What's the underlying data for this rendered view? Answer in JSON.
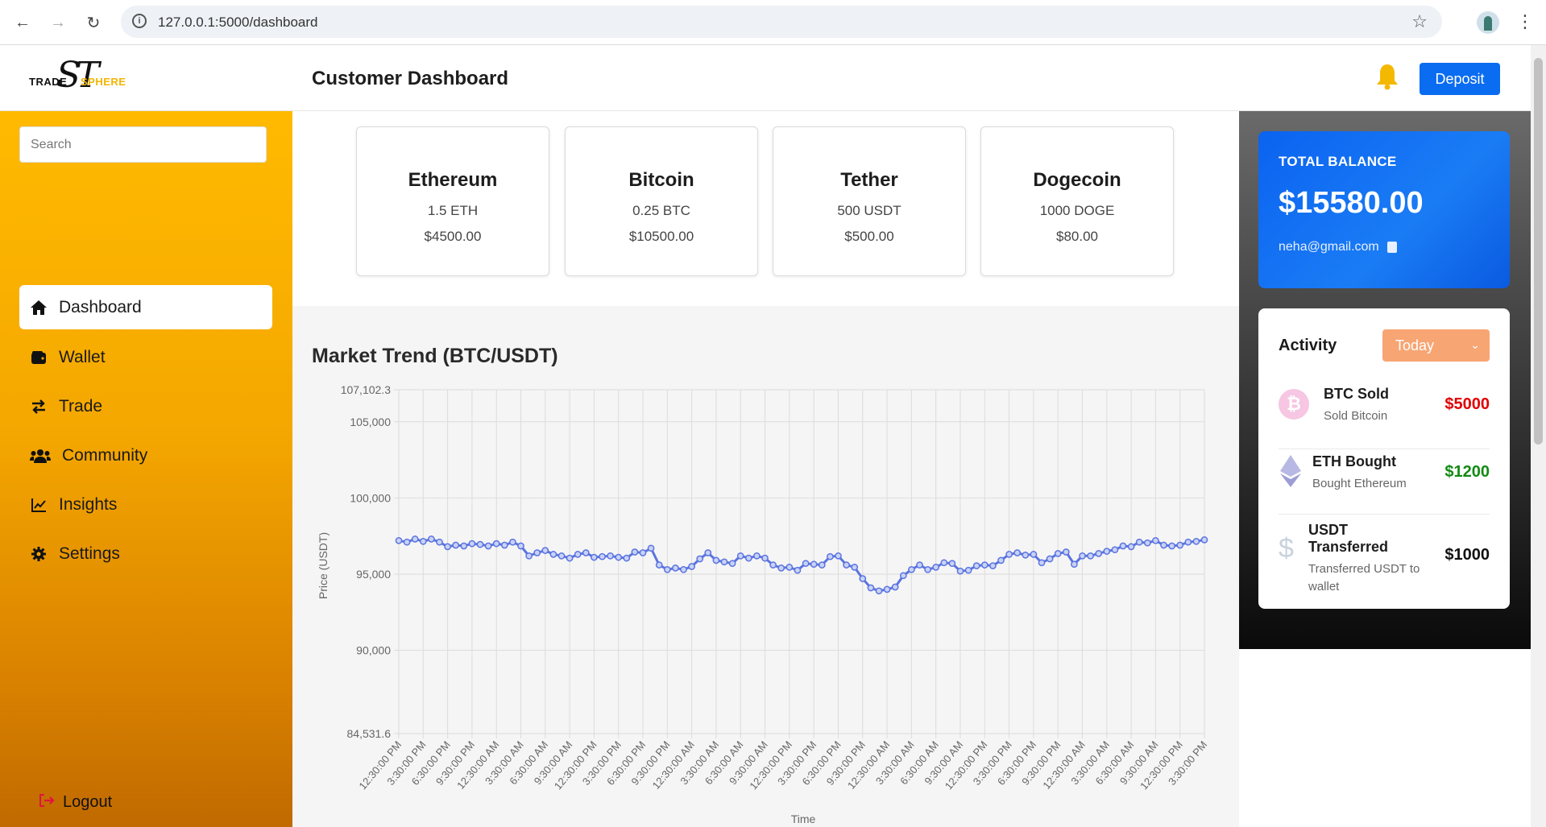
{
  "browser": {
    "url": "127.0.0.1:5000/dashboard"
  },
  "header": {
    "logo_trade": "TRADE",
    "logo_sphere": "SPHERE",
    "logo_mark": "ST",
    "title": "Customer Dashboard",
    "deposit_label": "Deposit"
  },
  "sidebar": {
    "search_placeholder": "Search",
    "items": [
      {
        "label": "Dashboard",
        "icon": "home-icon"
      },
      {
        "label": "Wallet",
        "icon": "wallet-icon"
      },
      {
        "label": "Trade",
        "icon": "exchange-icon"
      },
      {
        "label": "Community",
        "icon": "users-icon"
      },
      {
        "label": "Insights",
        "icon": "chart-line-icon"
      },
      {
        "label": "Settings",
        "icon": "gear-icon"
      }
    ],
    "logout_label": "Logout"
  },
  "coins": [
    {
      "name": "Ethereum",
      "amount": "1.5 ETH",
      "value": "$4500.00"
    },
    {
      "name": "Bitcoin",
      "amount": "0.25 BTC",
      "value": "$10500.00"
    },
    {
      "name": "Tether",
      "amount": "500 USDT",
      "value": "$500.00"
    },
    {
      "name": "Dogecoin",
      "amount": "1000 DOGE",
      "value": "$80.00"
    }
  ],
  "market": {
    "title": "Market Trend (BTC/USDT)"
  },
  "balance": {
    "label": "TOTAL BALANCE",
    "amount": "$15580.00",
    "email": "neha@gmail.com"
  },
  "activity": {
    "title": "Activity",
    "filter_value": "Today",
    "items": [
      {
        "title": "BTC Sold",
        "subtitle": "Sold Bitcoin",
        "amount": "$5000",
        "color": "#e00000",
        "icon": "bitcoin-icon"
      },
      {
        "title": "ETH Bought",
        "subtitle": "Bought Ethereum",
        "amount": "$1200",
        "color": "#128a12",
        "icon": "ethereum-icon"
      },
      {
        "title": "USDT Transferred",
        "subtitle": "Transferred USDT to wallet",
        "amount": "$1000",
        "color": "#111111",
        "icon": "dollar-icon"
      }
    ]
  },
  "chart_data": {
    "type": "line",
    "xlabel": "Time",
    "ylabel": "Price (USDT)",
    "ylim": [
      84531.6,
      107102.3
    ],
    "yticks": [
      "107,102.3",
      "105,000",
      "100,000",
      "95,000",
      "90,000",
      "84,531.6"
    ],
    "ytick_values": [
      107102.3,
      105000,
      100000,
      95000,
      90000,
      84531.6
    ],
    "xtick_labels": [
      "12:30:00 PM",
      "3:30:00 PM",
      "6:30:00 PM",
      "9:30:00 PM",
      "12:30:00 AM",
      "3:30:00 AM",
      "6:30:00 AM",
      "9:30:00 AM",
      "12:30:00 PM",
      "3:30:00 PM",
      "6:30:00 PM",
      "9:30:00 PM",
      "12:30:00 AM",
      "3:30:00 AM",
      "6:30:00 AM",
      "9:30:00 AM",
      "12:30:00 PM",
      "3:30:00 PM",
      "6:30:00 PM",
      "9:30:00 PM",
      "12:30:00 AM",
      "3:30:00 AM",
      "6:30:00 AM",
      "9:30:00 AM",
      "12:30:00 PM",
      "3:30:00 PM",
      "6:30:00 PM",
      "9:30:00 PM",
      "12:30:00 AM",
      "3:30:00 AM",
      "6:30:00 AM",
      "9:30:00 AM",
      "12:30:00 PM",
      "3:30:00 PM"
    ],
    "grid": true,
    "color": "#5b74e0",
    "series": [
      {
        "values": [
          97200,
          97100,
          97300,
          97150,
          97300,
          97100,
          96800,
          96900,
          96850,
          97000,
          96950,
          96850,
          97000,
          96900,
          97100,
          96850,
          96200,
          96400,
          96550,
          96300,
          96200,
          96050,
          96300,
          96400,
          96100,
          96150,
          96200,
          96100,
          96050,
          96450,
          96400,
          96700,
          95600,
          95300,
          95400,
          95300,
          95500,
          96000,
          96400,
          95900,
          95800,
          95700,
          96200,
          96050,
          96200,
          96050,
          95600,
          95400,
          95450,
          95250,
          95700,
          95650,
          95600,
          96150,
          96200,
          95600,
          95450,
          94700,
          94100,
          93900,
          94000,
          94150,
          94900,
          95300,
          95600,
          95300,
          95450,
          95750,
          95700,
          95200,
          95250,
          95550,
          95600,
          95550,
          95900,
          96300,
          96400,
          96250,
          96300,
          95750,
          96000,
          96350,
          96450,
          95650,
          96200,
          96200,
          96350,
          96500,
          96600,
          96850,
          96800,
          97100,
          97050,
          97200,
          96900,
          96850,
          96900,
          97100,
          97150,
          97250
        ]
      }
    ]
  }
}
